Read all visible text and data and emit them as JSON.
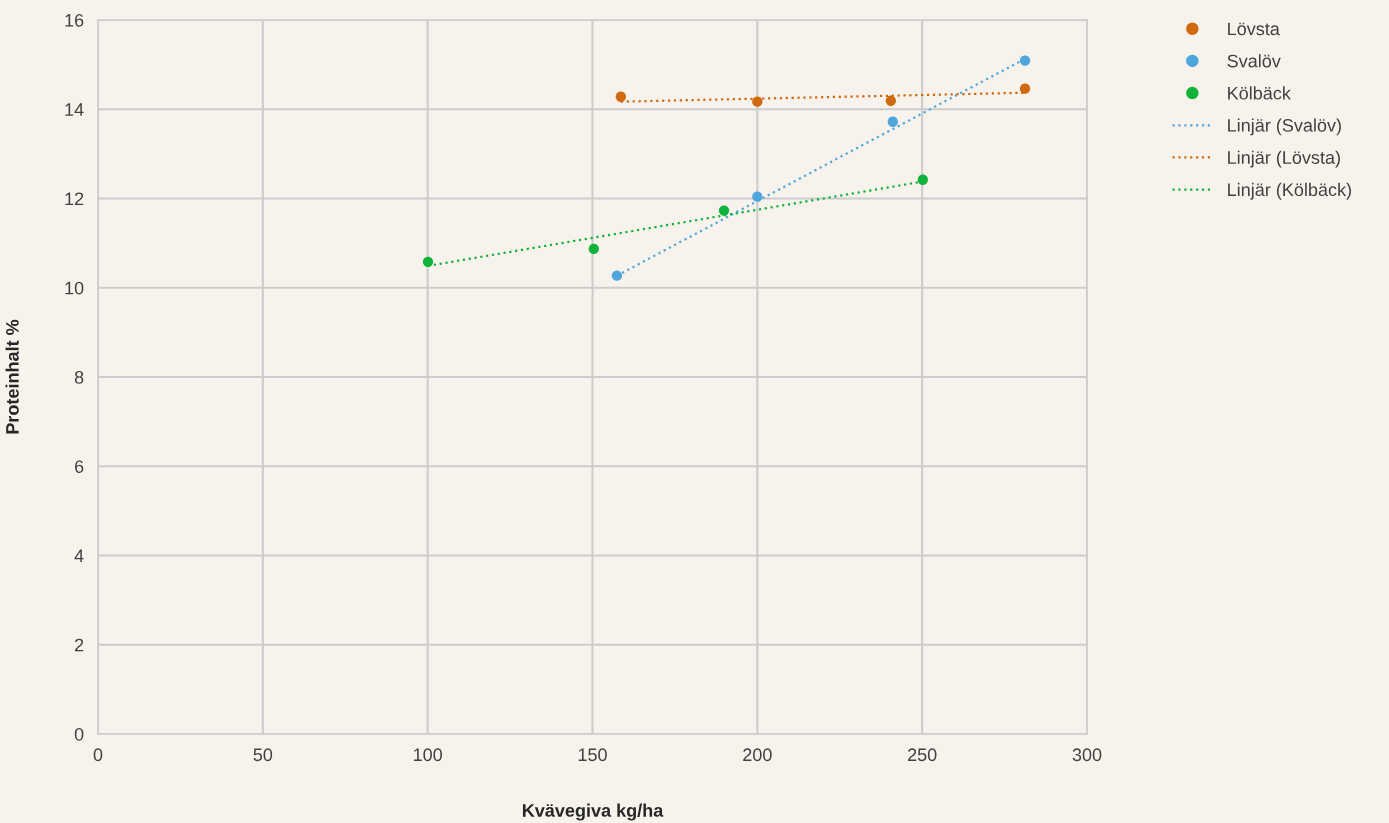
{
  "chart_data": {
    "type": "scatter",
    "xlabel": "Kvävegiva kg/ha",
    "ylabel": "Proteinhalt %",
    "xlim": [
      0,
      300
    ],
    "xticks": [
      0,
      50,
      100,
      150,
      200,
      250,
      300
    ],
    "ylim": [
      0,
      16
    ],
    "yticks": [
      0,
      2,
      4,
      6,
      8,
      10,
      12,
      14,
      16
    ],
    "grid": true,
    "legend": "top right",
    "marker": "circle",
    "series": [
      {
        "name": "Lövsta",
        "color": "#d0690f",
        "x": [
          158.6,
          200,
          240.5,
          281.2
        ],
        "values": [
          14.28,
          14.17,
          14.19,
          14.46
        ]
      },
      {
        "name": "Svalöv",
        "color": "#4ea6dc",
        "x": [
          157.4,
          200,
          241.1,
          281.2
        ],
        "values": [
          10.27,
          12.04,
          13.72,
          15.09
        ]
      },
      {
        "name": "Kölbäck",
        "color": "#10b23a",
        "x": [
          100.1,
          150.4,
          189.9,
          250.2
        ],
        "values": [
          10.58,
          10.87,
          11.73,
          12.42
        ]
      },
      {
        "name": "Linjär (Svalöv)",
        "type": "line",
        "line_style": "dotted",
        "marker": "none",
        "color": "#4ea6dc",
        "x": [
          157.4,
          281.2
        ],
        "values": [
          10.27,
          15.13
        ]
      },
      {
        "name": "Linjär (Lövsta)",
        "type": "line",
        "line_style": "dotted",
        "marker": "none",
        "color": "#d0690f",
        "x": [
          158.6,
          281.2
        ],
        "values": [
          14.17,
          14.37
        ]
      },
      {
        "name": "Linjär (Kölbäck)",
        "type": "line",
        "line_style": "dotted",
        "marker": "none",
        "color": "#10b23a",
        "x": [
          100.1,
          250.2
        ],
        "values": [
          10.49,
          12.38
        ]
      }
    ]
  }
}
